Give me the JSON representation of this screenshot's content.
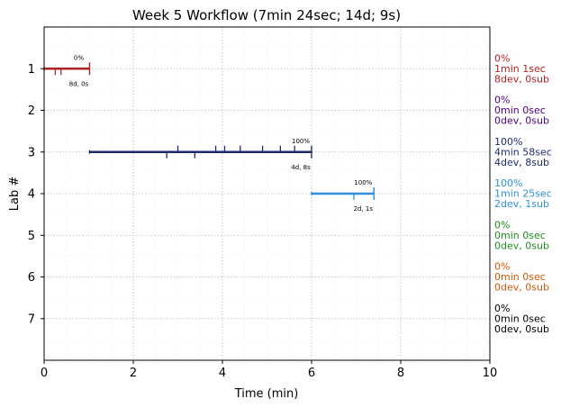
{
  "chart_data": {
    "type": "timeline",
    "title": "Week 5 Workflow (7min 24sec; 14d; 9s)",
    "xlabel": "Time (min)",
    "ylabel": "Lab #",
    "xlim": [
      0,
      10
    ],
    "ylim": [
      0,
      8
    ],
    "x_ticks": [
      "0",
      "2",
      "4",
      "6",
      "8",
      "10"
    ],
    "y_ticks": [
      "1",
      "2",
      "3",
      "4",
      "5",
      "6",
      "7"
    ],
    "grid": true,
    "labs": [
      {
        "lab": 1,
        "color": "#b22222",
        "start": 0,
        "end": 1.02,
        "dev_marks": [
          0.25,
          0.38
        ],
        "sub_marks": [],
        "pct": "0%",
        "counts": "8d, 0s",
        "side": [
          "0%",
          "1min 1sec",
          "8dev, 0sub"
        ]
      },
      {
        "lab": 2,
        "color": "#4b0082",
        "start": null,
        "end": null,
        "dev_marks": [],
        "sub_marks": [],
        "pct": "",
        "counts": "",
        "side": [
          "0%",
          "0min 0sec",
          "0dev, 0sub"
        ]
      },
      {
        "lab": 3,
        "color": "#1f2a6e",
        "start": 1.02,
        "end": 6.0,
        "dev_marks": [
          2.75,
          3.38
        ],
        "sub_marks": [
          3.0,
          3.85,
          4.05,
          4.4,
          4.9,
          5.3,
          5.62
        ],
        "pct": "100%",
        "counts": "4d, 8s",
        "side": [
          "100%",
          "4min 58sec",
          "4dev, 8sub"
        ]
      },
      {
        "lab": 4,
        "color": "#2e8fde",
        "start": 6.0,
        "end": 7.4,
        "dev_marks": [
          6.95
        ],
        "sub_marks": [
          7.4
        ],
        "pct": "100%",
        "counts": "2d, 1s",
        "side": [
          "100%",
          "1min 25sec",
          "2dev, 1sub"
        ]
      },
      {
        "lab": 5,
        "color": "#228b22",
        "start": null,
        "end": null,
        "dev_marks": [],
        "sub_marks": [],
        "pct": "",
        "counts": "",
        "side": [
          "0%",
          "0min 0sec",
          "0dev, 0sub"
        ]
      },
      {
        "lab": 6,
        "color": "#d2560a",
        "start": null,
        "end": null,
        "dev_marks": [],
        "sub_marks": [],
        "pct": "",
        "counts": "",
        "side": [
          "0%",
          "0min 0sec",
          "0dev, 0sub"
        ]
      },
      {
        "lab": 7,
        "color": "#000000",
        "start": null,
        "end": null,
        "dev_marks": [],
        "sub_marks": [],
        "pct": "",
        "counts": "",
        "side": [
          "0%",
          "0min 0sec",
          "0dev, 0sub"
        ]
      }
    ]
  }
}
